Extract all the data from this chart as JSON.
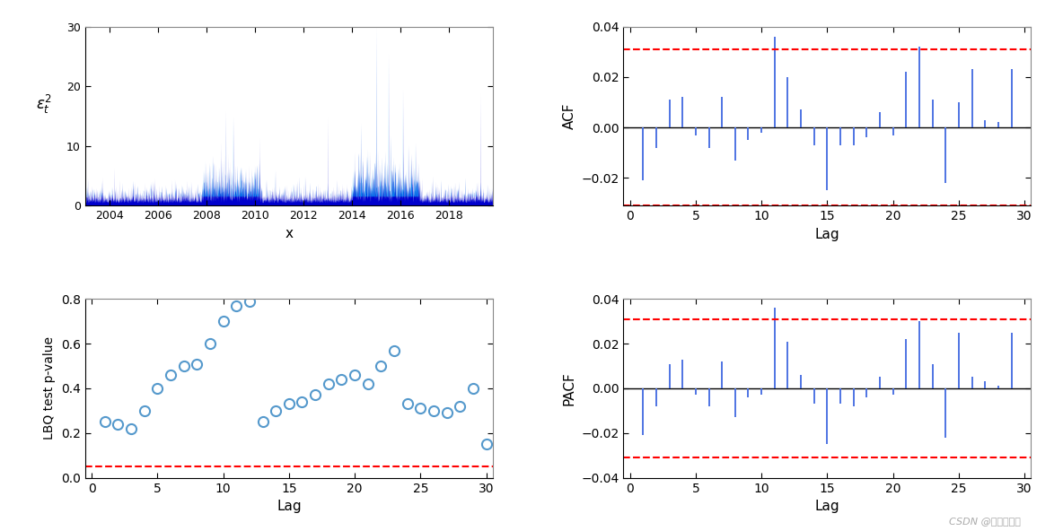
{
  "background_color": "#ffffff",
  "ts_ylabel": "$\\varepsilon_t^2$",
  "ts_xlabel": "x",
  "ts_xlim": [
    2003.0,
    2019.8
  ],
  "ts_ylim": [
    0,
    30
  ],
  "ts_yticks": [
    0,
    10,
    20,
    30
  ],
  "ts_xticks": [
    2004,
    2006,
    2008,
    2010,
    2012,
    2014,
    2016,
    2018
  ],
  "acf_ylabel": "ACF",
  "acf_xlabel": "Lag",
  "acf_ylim": [
    -0.031,
    0.04
  ],
  "acf_yticks": [
    -0.02,
    0.0,
    0.02,
    0.04
  ],
  "acf_xlim": [
    -0.5,
    30.5
  ],
  "acf_conf": 0.031,
  "acf_values": [
    0,
    -0.021,
    -0.008,
    0.011,
    0.012,
    -0.003,
    -0.008,
    0.012,
    -0.013,
    -0.005,
    -0.002,
    0.036,
    0.02,
    0.007,
    -0.007,
    -0.025,
    -0.007,
    -0.007,
    -0.004,
    0.006,
    -0.003,
    0.022,
    0.032,
    0.011,
    -0.022,
    0.01,
    0.023,
    0.003,
    0.002,
    0.023
  ],
  "pacf_ylabel": "PACF",
  "pacf_xlabel": "Lag",
  "pacf_ylim": [
    -0.04,
    0.04
  ],
  "pacf_yticks": [
    -0.04,
    -0.02,
    0.0,
    0.02,
    0.04
  ],
  "pacf_xlim": [
    -0.5,
    30.5
  ],
  "pacf_conf": 0.031,
  "pacf_values": [
    0,
    -0.021,
    -0.008,
    0.011,
    0.013,
    -0.003,
    -0.008,
    0.012,
    -0.013,
    -0.004,
    -0.003,
    0.036,
    0.021,
    0.006,
    -0.007,
    -0.025,
    -0.007,
    -0.008,
    -0.004,
    0.005,
    -0.003,
    0.022,
    0.03,
    0.011,
    -0.022,
    0.025,
    0.005,
    0.003,
    0.001,
    0.025
  ],
  "lbq_ylabel": "LBQ test p-value",
  "lbq_xlabel": "Lag",
  "lbq_ylim": [
    0,
    0.8
  ],
  "lbq_yticks": [
    0,
    0.2,
    0.4,
    0.6,
    0.8
  ],
  "lbq_xlim": [
    -0.5,
    30.5
  ],
  "lbq_conf": 0.05,
  "lbq_lags": [
    1,
    2,
    3,
    4,
    5,
    6,
    7,
    8,
    9,
    10,
    11,
    12,
    13,
    14,
    15,
    16,
    17,
    18,
    19,
    20,
    21,
    22,
    23,
    24,
    25,
    26,
    27,
    28,
    29,
    30
  ],
  "lbq_values": [
    0.25,
    0.24,
    0.22,
    0.3,
    0.4,
    0.46,
    0.5,
    0.51,
    0.6,
    0.7,
    0.77,
    0.79,
    0.25,
    0.3,
    0.33,
    0.34,
    0.37,
    0.42,
    0.44,
    0.46,
    0.42,
    0.5,
    0.57,
    0.33,
    0.31,
    0.3,
    0.29,
    0.32,
    0.4,
    0.15
  ],
  "line_color": "#4169E1",
  "conf_color": "#FF0000",
  "circle_color": "#5599CC",
  "bar_color_dark": "#0000CD",
  "bar_color_light": "#00BFFF",
  "watermark": "CSDN @拓端研究室"
}
